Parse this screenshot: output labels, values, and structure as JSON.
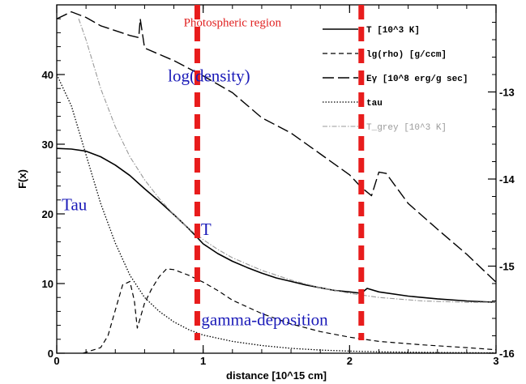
{
  "chart_data": {
    "type": "line",
    "title": "",
    "xlabel": "distance [10^15 cm]",
    "ylabel": "F(x)",
    "xlim": [
      0,
      3
    ],
    "ylim": [
      0,
      50
    ],
    "y2lim": [
      -16,
      -12
    ],
    "x_ticks": [
      "0",
      "1",
      "2",
      "3"
    ],
    "y_ticks": [
      "0",
      "10",
      "20",
      "30",
      "40"
    ],
    "y2_ticks": [
      "-16",
      "-15",
      "-14",
      "-13"
    ],
    "legend_position": "top-right",
    "legend": [
      {
        "label": "T [10^3 K]",
        "style": "solid"
      },
      {
        "label": "lg(rho) [g/ccm]",
        "style": "short-dash"
      },
      {
        "label": "Eγ [10^8 erg/g sec]",
        "style": "long-dash"
      },
      {
        "label": "tau",
        "style": "dotted"
      },
      {
        "label": "T_grey [10^3 K]",
        "style": "dash-dot-grey"
      }
    ],
    "annotations": [
      {
        "text": "Photospheric region",
        "color": "#e02020",
        "x": 1.2,
        "y": 46.9
      },
      {
        "text": "log(density)",
        "color": "#1a1ab8",
        "x": 1.04,
        "y": 39.0
      },
      {
        "text": "Tau",
        "color": "#1a1ab8",
        "x": 0.12,
        "y": 20.5
      },
      {
        "text": "T",
        "color": "#1a1ab8",
        "x": 1.02,
        "y": 17.0
      },
      {
        "text": "gamma-deposition",
        "color": "#1a1ab8",
        "x": 1.42,
        "y": 4.0
      }
    ],
    "vertical_markers": [
      {
        "x": 0.96,
        "color": "#e81c1c",
        "style": "dashed"
      },
      {
        "x": 2.08,
        "color": "#e81c1c",
        "style": "dashed"
      }
    ],
    "series": [
      {
        "label": "T",
        "style": "solid",
        "x": [
          0.0,
          0.1,
          0.2,
          0.3,
          0.4,
          0.5,
          0.6,
          0.7,
          0.8,
          0.9,
          0.96,
          1.0,
          1.1,
          1.2,
          1.3,
          1.4,
          1.5,
          1.6,
          1.7,
          1.8,
          1.9,
          2.0,
          2.08,
          2.12,
          2.2,
          2.4,
          2.6,
          2.8,
          3.0
        ],
        "y": [
          29.4,
          29.3,
          29.0,
          28.2,
          27.0,
          25.5,
          23.6,
          21.8,
          19.9,
          17.9,
          16.6,
          15.7,
          14.3,
          13.2,
          12.3,
          11.5,
          10.8,
          10.3,
          9.8,
          9.4,
          9.0,
          8.8,
          8.6,
          9.3,
          8.8,
          8.2,
          7.8,
          7.5,
          7.3
        ]
      },
      {
        "label": "lg(rho)",
        "style": "short-dash",
        "x": [
          0.18,
          0.3,
          0.35,
          0.4,
          0.45,
          0.5,
          0.53,
          0.55,
          0.6,
          0.65,
          0.7,
          0.75,
          0.8,
          0.9,
          1.0,
          1.1,
          1.2,
          1.4,
          1.6,
          1.8,
          2.0,
          2.2,
          2.5,
          2.8,
          3.0
        ],
        "y": [
          0.0,
          0.8,
          2.5,
          6.2,
          9.8,
          10.3,
          7.5,
          3.6,
          7.2,
          9.3,
          11.0,
          12.1,
          12.0,
          11.2,
          10.2,
          9.0,
          7.6,
          5.7,
          4.2,
          3.1,
          2.3,
          1.7,
          1.2,
          0.8,
          0.5
        ]
      },
      {
        "label": "Egamma",
        "style": "long-dash",
        "x": [
          0.0,
          0.1,
          0.2,
          0.3,
          0.4,
          0.5,
          0.56,
          0.57,
          0.6,
          0.8,
          1.0,
          1.2,
          1.4,
          1.6,
          1.8,
          2.0,
          2.08,
          2.15,
          2.2,
          2.25,
          2.4,
          2.6,
          2.8,
          3.0
        ],
        "y": [
          48.0,
          49.0,
          48.2,
          47.0,
          46.3,
          45.6,
          45.3,
          48.0,
          43.8,
          42.0,
          39.8,
          37.4,
          33.8,
          31.6,
          28.6,
          25.6,
          23.8,
          22.6,
          26.0,
          25.8,
          21.5,
          17.8,
          14.2,
          10.2
        ]
      },
      {
        "label": "tau",
        "style": "dotted",
        "x": [
          0.0,
          0.1,
          0.2,
          0.3,
          0.4,
          0.5,
          0.6,
          0.7,
          0.8,
          0.9,
          1.0,
          1.2,
          1.4,
          1.6,
          1.8,
          2.0,
          2.2,
          2.6,
          3.0
        ],
        "y": [
          40.0,
          35.5,
          28.5,
          21.5,
          15.8,
          11.2,
          8.0,
          6.0,
          4.5,
          3.4,
          2.6,
          1.7,
          1.1,
          0.7,
          0.45,
          0.3,
          0.2,
          0.1,
          0.05
        ]
      },
      {
        "label": "T_grey",
        "style": "dash-dot-grey",
        "x": [
          0.15,
          0.2,
          0.3,
          0.4,
          0.5,
          0.6,
          0.7,
          0.8,
          0.9,
          1.0,
          1.1,
          1.2,
          1.4,
          1.6,
          1.8,
          2.0,
          2.2,
          2.5,
          2.8,
          3.0
        ],
        "y": [
          48.0,
          45.0,
          38.0,
          32.5,
          28.2,
          24.9,
          22.2,
          19.9,
          17.9,
          16.3,
          14.9,
          13.7,
          11.9,
          10.5,
          9.4,
          8.6,
          8.0,
          7.5,
          7.3,
          7.3
        ]
      }
    ]
  }
}
